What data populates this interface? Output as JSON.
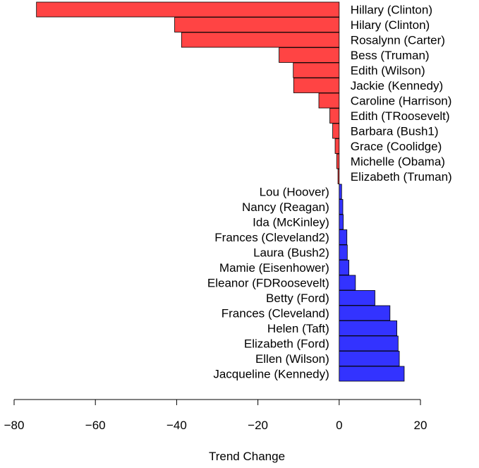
{
  "chart_data": {
    "type": "bar",
    "orientation": "horizontal",
    "xlabel": "Trend Change",
    "ylabel": "",
    "title": "",
    "xlim": [
      -80,
      20
    ],
    "xticks": [
      -80,
      -60,
      -40,
      -20,
      0,
      20
    ],
    "xtick_labels": [
      "−80",
      "−60",
      "−40",
      "−20",
      "0",
      "20"
    ],
    "grid": false,
    "colors": {
      "negative": "#ff4444",
      "positive": "#3333ff",
      "outline": "#000000"
    },
    "categories": [
      "Hillary (Clinton)",
      "Hilary (Clinton)",
      "Rosalynn (Carter)",
      "Bess (Truman)",
      "Edith (Wilson)",
      "Jackie (Kennedy)",
      "Caroline (Harrison)",
      "Edith (TRoosevelt)",
      "Barbara (Bush1)",
      "Grace (Coolidge)",
      "Michelle (Obama)",
      "Elizabeth (Truman)",
      "Lou (Hoover)",
      "Nancy (Reagan)",
      "Ida (McKinley)",
      "Frances (Cleveland2)",
      "Laura (Bush2)",
      "Mamie (Eisenhower)",
      "Eleanor (FDRoosevelt)",
      "Betty (Ford)",
      "Frances (Cleveland)",
      "Helen (Taft)",
      "Elizabeth (Ford)",
      "Ellen (Wilson)",
      "Jacqueline (Kennedy)"
    ],
    "values": [
      -74.5,
      -40.5,
      -38.8,
      -14.8,
      -11.3,
      -11.2,
      -5.0,
      -2.3,
      -1.6,
      -1.0,
      -0.6,
      -0.3,
      0.6,
      0.9,
      1.0,
      1.9,
      2.0,
      2.4,
      4.0,
      8.8,
      12.5,
      14.2,
      14.5,
      14.8,
      16.0
    ]
  }
}
